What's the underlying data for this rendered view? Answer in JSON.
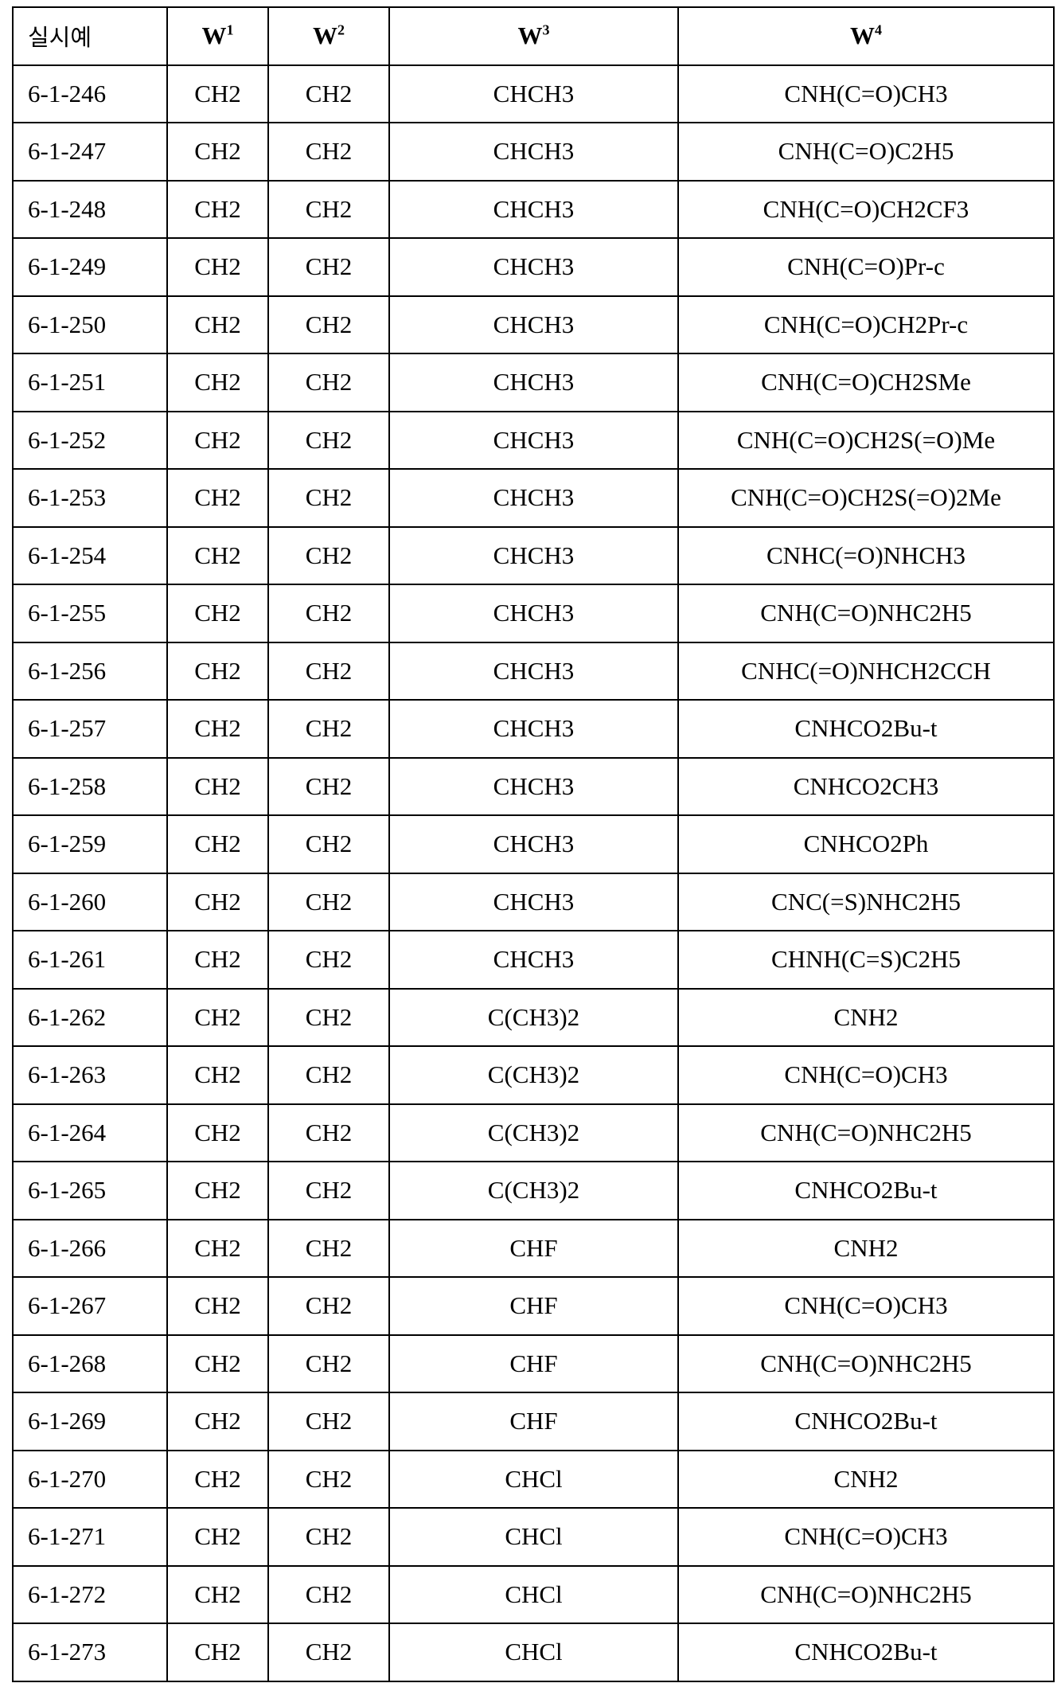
{
  "table": {
    "headers": [
      {
        "base": "실시예",
        "sup": ""
      },
      {
        "base": "W",
        "sup": "1"
      },
      {
        "base": "W",
        "sup": "2"
      },
      {
        "base": "W",
        "sup": "3"
      },
      {
        "base": "W",
        "sup": "4"
      }
    ],
    "rows": [
      [
        "6-1-246",
        "CH2",
        "CH2",
        "CHCH3",
        "CNH(C=O)CH3"
      ],
      [
        "6-1-247",
        "CH2",
        "CH2",
        "CHCH3",
        "CNH(C=O)C2H5"
      ],
      [
        "6-1-248",
        "CH2",
        "CH2",
        "CHCH3",
        "CNH(C=O)CH2CF3"
      ],
      [
        "6-1-249",
        "CH2",
        "CH2",
        "CHCH3",
        "CNH(C=O)Pr-c"
      ],
      [
        "6-1-250",
        "CH2",
        "CH2",
        "CHCH3",
        "CNH(C=O)CH2Pr-c"
      ],
      [
        "6-1-251",
        "CH2",
        "CH2",
        "CHCH3",
        "CNH(C=O)CH2SMe"
      ],
      [
        "6-1-252",
        "CH2",
        "CH2",
        "CHCH3",
        "CNH(C=O)CH2S(=O)Me"
      ],
      [
        "6-1-253",
        "CH2",
        "CH2",
        "CHCH3",
        "CNH(C=O)CH2S(=O)2Me"
      ],
      [
        "6-1-254",
        "CH2",
        "CH2",
        "CHCH3",
        "CNHC(=O)NHCH3"
      ],
      [
        "6-1-255",
        "CH2",
        "CH2",
        "CHCH3",
        "CNH(C=O)NHC2H5"
      ],
      [
        "6-1-256",
        "CH2",
        "CH2",
        "CHCH3",
        "CNHC(=O)NHCH2CCH"
      ],
      [
        "6-1-257",
        "CH2",
        "CH2",
        "CHCH3",
        "CNHCO2Bu-t"
      ],
      [
        "6-1-258",
        "CH2",
        "CH2",
        "CHCH3",
        "CNHCO2CH3"
      ],
      [
        "6-1-259",
        "CH2",
        "CH2",
        "CHCH3",
        "CNHCO2Ph"
      ],
      [
        "6-1-260",
        "CH2",
        "CH2",
        "CHCH3",
        "CNC(=S)NHC2H5"
      ],
      [
        "6-1-261",
        "CH2",
        "CH2",
        "CHCH3",
        "CHNH(C=S)C2H5"
      ],
      [
        "6-1-262",
        "CH2",
        "CH2",
        "C(CH3)2",
        "CNH2"
      ],
      [
        "6-1-263",
        "CH2",
        "CH2",
        "C(CH3)2",
        "CNH(C=O)CH3"
      ],
      [
        "6-1-264",
        "CH2",
        "CH2",
        "C(CH3)2",
        "CNH(C=O)NHC2H5"
      ],
      [
        "6-1-265",
        "CH2",
        "CH2",
        "C(CH3)2",
        "CNHCO2Bu-t"
      ],
      [
        "6-1-266",
        "CH2",
        "CH2",
        "CHF",
        "CNH2"
      ],
      [
        "6-1-267",
        "CH2",
        "CH2",
        "CHF",
        "CNH(C=O)CH3"
      ],
      [
        "6-1-268",
        "CH2",
        "CH2",
        "CHF",
        "CNH(C=O)NHC2H5"
      ],
      [
        "6-1-269",
        "CH2",
        "CH2",
        "CHF",
        "CNHCO2Bu-t"
      ],
      [
        "6-1-270",
        "CH2",
        "CH2",
        "CHCl",
        "CNH2"
      ],
      [
        "6-1-271",
        "CH2",
        "CH2",
        "CHCl",
        "CNH(C=O)CH3"
      ],
      [
        "6-1-272",
        "CH2",
        "CH2",
        "CHCl",
        "CNH(C=O)NHC2H5"
      ],
      [
        "6-1-273",
        "CH2",
        "CH2",
        "CHCl",
        "CNHCO2Bu-t"
      ]
    ]
  }
}
